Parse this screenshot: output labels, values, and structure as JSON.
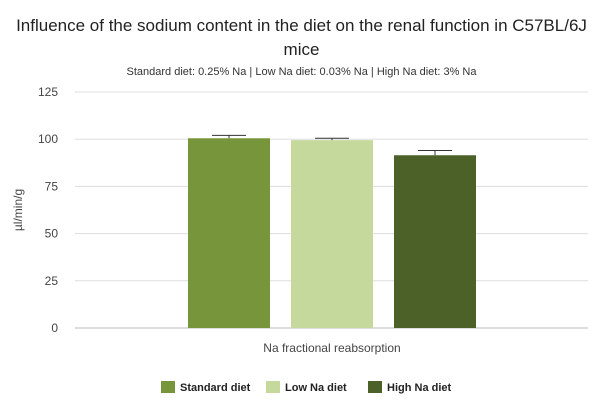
{
  "chart_data": {
    "type": "bar",
    "title": "Influence of the sodium content in the diet on the renal function in C57BL/6J mice",
    "subtitle": "Standard diet: 0.25% Na | Low Na diet: 0.03% Na | High Na diet: 3% Na",
    "categories": [
      "Na fractional reabsorption"
    ],
    "series": [
      {
        "name": "Standard diet",
        "values": [
          100.5
        ],
        "error": [
          1.5
        ],
        "color": "#77953a"
      },
      {
        "name": "Low Na diet",
        "values": [
          99.5
        ],
        "error": [
          1.0
        ],
        "color": "#c5d99d"
      },
      {
        "name": "High Na diet",
        "values": [
          91.5
        ],
        "error": [
          2.5
        ],
        "color": "#4c6128"
      }
    ],
    "xlabel": "Na fractional reabsorption",
    "ylabel": "µl/min/g",
    "ylim": [
      0,
      125
    ],
    "yticks": [
      0,
      25,
      50,
      75,
      100,
      125
    ],
    "grid": true,
    "legend": "bottom"
  }
}
